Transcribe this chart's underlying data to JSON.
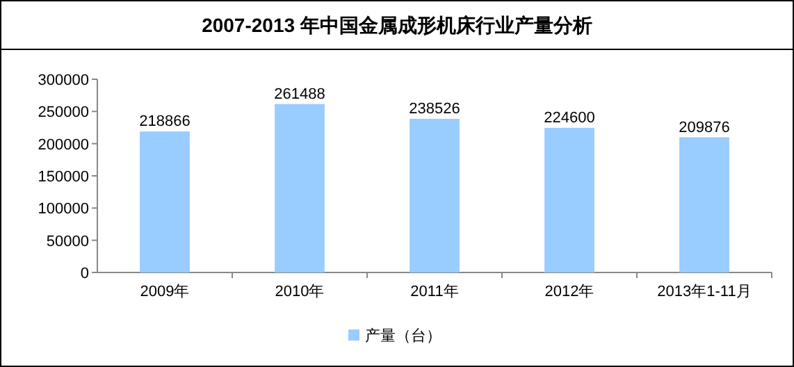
{
  "chart_data": {
    "type": "bar",
    "title": "2007-2013 年中国金属成形机床行业产量分析",
    "categories": [
      "2009年",
      "2010年",
      "2011年",
      "2012年",
      "2013年1-11月"
    ],
    "series": [
      {
        "name": "产量（台）",
        "color": "#99ccff",
        "values": [
          218866,
          261488,
          238526,
          224600,
          209876
        ]
      }
    ],
    "ylim": [
      0,
      300000
    ],
    "yticks": [
      0,
      50000,
      100000,
      150000,
      200000,
      250000,
      300000
    ],
    "data_labels": true,
    "legend": "bottom",
    "grid": false
  }
}
